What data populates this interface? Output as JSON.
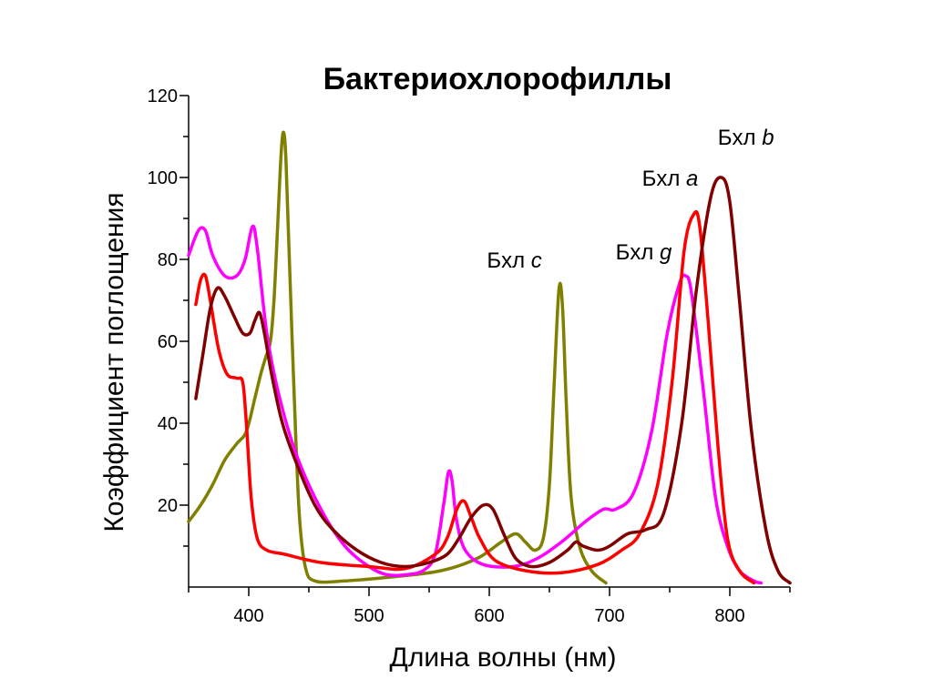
{
  "chart_data": {
    "type": "line",
    "title": "Бактериохлорофиллы",
    "xlabel": "Длина волны (нм)",
    "ylabel": "Коэффициент поглощения",
    "xlim": [
      350,
      850
    ],
    "ylim": [
      0,
      120
    ],
    "x_ticks": [
      400,
      500,
      600,
      700,
      800
    ],
    "x_minor_ticks": [
      350,
      450,
      550,
      650,
      750,
      850
    ],
    "y_ticks": [
      20,
      40,
      60,
      80,
      100,
      120
    ],
    "y_minor_ticks": [
      10,
      30,
      50,
      70,
      90,
      110
    ],
    "grid": false,
    "series": [
      {
        "name": "Бхл c",
        "label_parts": [
          "Бхл ",
          "c"
        ],
        "label_anchor": [
          598,
          78
        ],
        "color": "#808000",
        "points": [
          [
            350,
            16
          ],
          [
            360,
            20
          ],
          [
            370,
            25
          ],
          [
            380,
            31
          ],
          [
            390,
            35
          ],
          [
            398,
            38
          ],
          [
            405,
            46
          ],
          [
            410,
            52
          ],
          [
            414,
            56
          ],
          [
            418,
            60
          ],
          [
            421,
            70
          ],
          [
            424,
            88
          ],
          [
            427,
            106
          ],
          [
            429,
            111
          ],
          [
            431,
            104
          ],
          [
            434,
            78
          ],
          [
            438,
            45
          ],
          [
            442,
            18
          ],
          [
            447,
            5
          ],
          [
            455,
            1.5
          ],
          [
            480,
            1.5
          ],
          [
            520,
            2.5
          ],
          [
            560,
            4
          ],
          [
            590,
            7
          ],
          [
            610,
            11
          ],
          [
            622,
            13
          ],
          [
            630,
            11
          ],
          [
            638,
            9
          ],
          [
            645,
            12
          ],
          [
            650,
            25
          ],
          [
            654,
            50
          ],
          [
            658,
            73
          ],
          [
            661,
            68
          ],
          [
            664,
            45
          ],
          [
            668,
            22
          ],
          [
            675,
            10
          ],
          [
            685,
            4
          ],
          [
            697,
            1
          ]
        ]
      },
      {
        "name": "Бхл g",
        "label_parts": [
          "Бхл ",
          "g"
        ],
        "label_anchor": [
          705,
          80
        ],
        "color": "#ff00ff",
        "points": [
          [
            350,
            81
          ],
          [
            358,
            87
          ],
          [
            364,
            87
          ],
          [
            370,
            81
          ],
          [
            380,
            76
          ],
          [
            390,
            76
          ],
          [
            397,
            80
          ],
          [
            403,
            88
          ],
          [
            407,
            83
          ],
          [
            415,
            62
          ],
          [
            425,
            47
          ],
          [
            440,
            32
          ],
          [
            460,
            19
          ],
          [
            480,
            10
          ],
          [
            500,
            5
          ],
          [
            515,
            3
          ],
          [
            530,
            3
          ],
          [
            545,
            4
          ],
          [
            555,
            8
          ],
          [
            562,
            20
          ],
          [
            566,
            28
          ],
          [
            569,
            26
          ],
          [
            573,
            16
          ],
          [
            580,
            9
          ],
          [
            595,
            5.5
          ],
          [
            620,
            5
          ],
          [
            640,
            7
          ],
          [
            660,
            11
          ],
          [
            680,
            16
          ],
          [
            695,
            19
          ],
          [
            705,
            19
          ],
          [
            720,
            23
          ],
          [
            735,
            38
          ],
          [
            748,
            62
          ],
          [
            758,
            74
          ],
          [
            763,
            76
          ],
          [
            768,
            72
          ],
          [
            778,
            48
          ],
          [
            788,
            22
          ],
          [
            798,
            10
          ],
          [
            808,
            4
          ],
          [
            820,
            1.5
          ],
          [
            826,
            1
          ]
        ]
      },
      {
        "name": "Бхл a",
        "label_parts": [
          "Бхл ",
          "a"
        ],
        "label_anchor": [
          727,
          98
        ],
        "color": "#ff0000",
        "points": [
          [
            356,
            69
          ],
          [
            360,
            75
          ],
          [
            364,
            76
          ],
          [
            368,
            70
          ],
          [
            375,
            58
          ],
          [
            382,
            52
          ],
          [
            390,
            51
          ],
          [
            395,
            50
          ],
          [
            398,
            40
          ],
          [
            402,
            22
          ],
          [
            407,
            12
          ],
          [
            415,
            9
          ],
          [
            430,
            8
          ],
          [
            460,
            6
          ],
          [
            500,
            5
          ],
          [
            530,
            4.5
          ],
          [
            555,
            8
          ],
          [
            565,
            12
          ],
          [
            573,
            19
          ],
          [
            579,
            21
          ],
          [
            585,
            17
          ],
          [
            592,
            12
          ],
          [
            605,
            6.5
          ],
          [
            630,
            4
          ],
          [
            660,
            3.5
          ],
          [
            690,
            5.5
          ],
          [
            710,
            9
          ],
          [
            725,
            13
          ],
          [
            740,
            25
          ],
          [
            752,
            50
          ],
          [
            762,
            82
          ],
          [
            770,
            91
          ],
          [
            775,
            88
          ],
          [
            782,
            65
          ],
          [
            790,
            35
          ],
          [
            798,
            12
          ],
          [
            808,
            4
          ],
          [
            820,
            1
          ]
        ]
      },
      {
        "name": "Бхл b",
        "label_parts": [
          "Бхл ",
          "b"
        ],
        "label_anchor": [
          790,
          108
        ],
        "color": "#800000",
        "points": [
          [
            356,
            46
          ],
          [
            362,
            57
          ],
          [
            368,
            68
          ],
          [
            374,
            73
          ],
          [
            380,
            71
          ],
          [
            388,
            66
          ],
          [
            395,
            62
          ],
          [
            401,
            62
          ],
          [
            405,
            65
          ],
          [
            409,
            67
          ],
          [
            413,
            62
          ],
          [
            419,
            52
          ],
          [
            428,
            40
          ],
          [
            440,
            30
          ],
          [
            455,
            20
          ],
          [
            470,
            14
          ],
          [
            490,
            9
          ],
          [
            510,
            6
          ],
          [
            530,
            5
          ],
          [
            550,
            6
          ],
          [
            565,
            8
          ],
          [
            575,
            12
          ],
          [
            585,
            17
          ],
          [
            595,
            20
          ],
          [
            603,
            19
          ],
          [
            612,
            13
          ],
          [
            622,
            7
          ],
          [
            635,
            5
          ],
          [
            650,
            6
          ],
          [
            665,
            9
          ],
          [
            672,
            11
          ],
          [
            678,
            10
          ],
          [
            690,
            9
          ],
          [
            700,
            10
          ],
          [
            715,
            13
          ],
          [
            730,
            14
          ],
          [
            745,
            18
          ],
          [
            760,
            40
          ],
          [
            772,
            72
          ],
          [
            784,
            95
          ],
          [
            793,
            100
          ],
          [
            800,
            94
          ],
          [
            808,
            70
          ],
          [
            818,
            38
          ],
          [
            830,
            14
          ],
          [
            840,
            4
          ],
          [
            850,
            1
          ]
        ]
      }
    ]
  }
}
